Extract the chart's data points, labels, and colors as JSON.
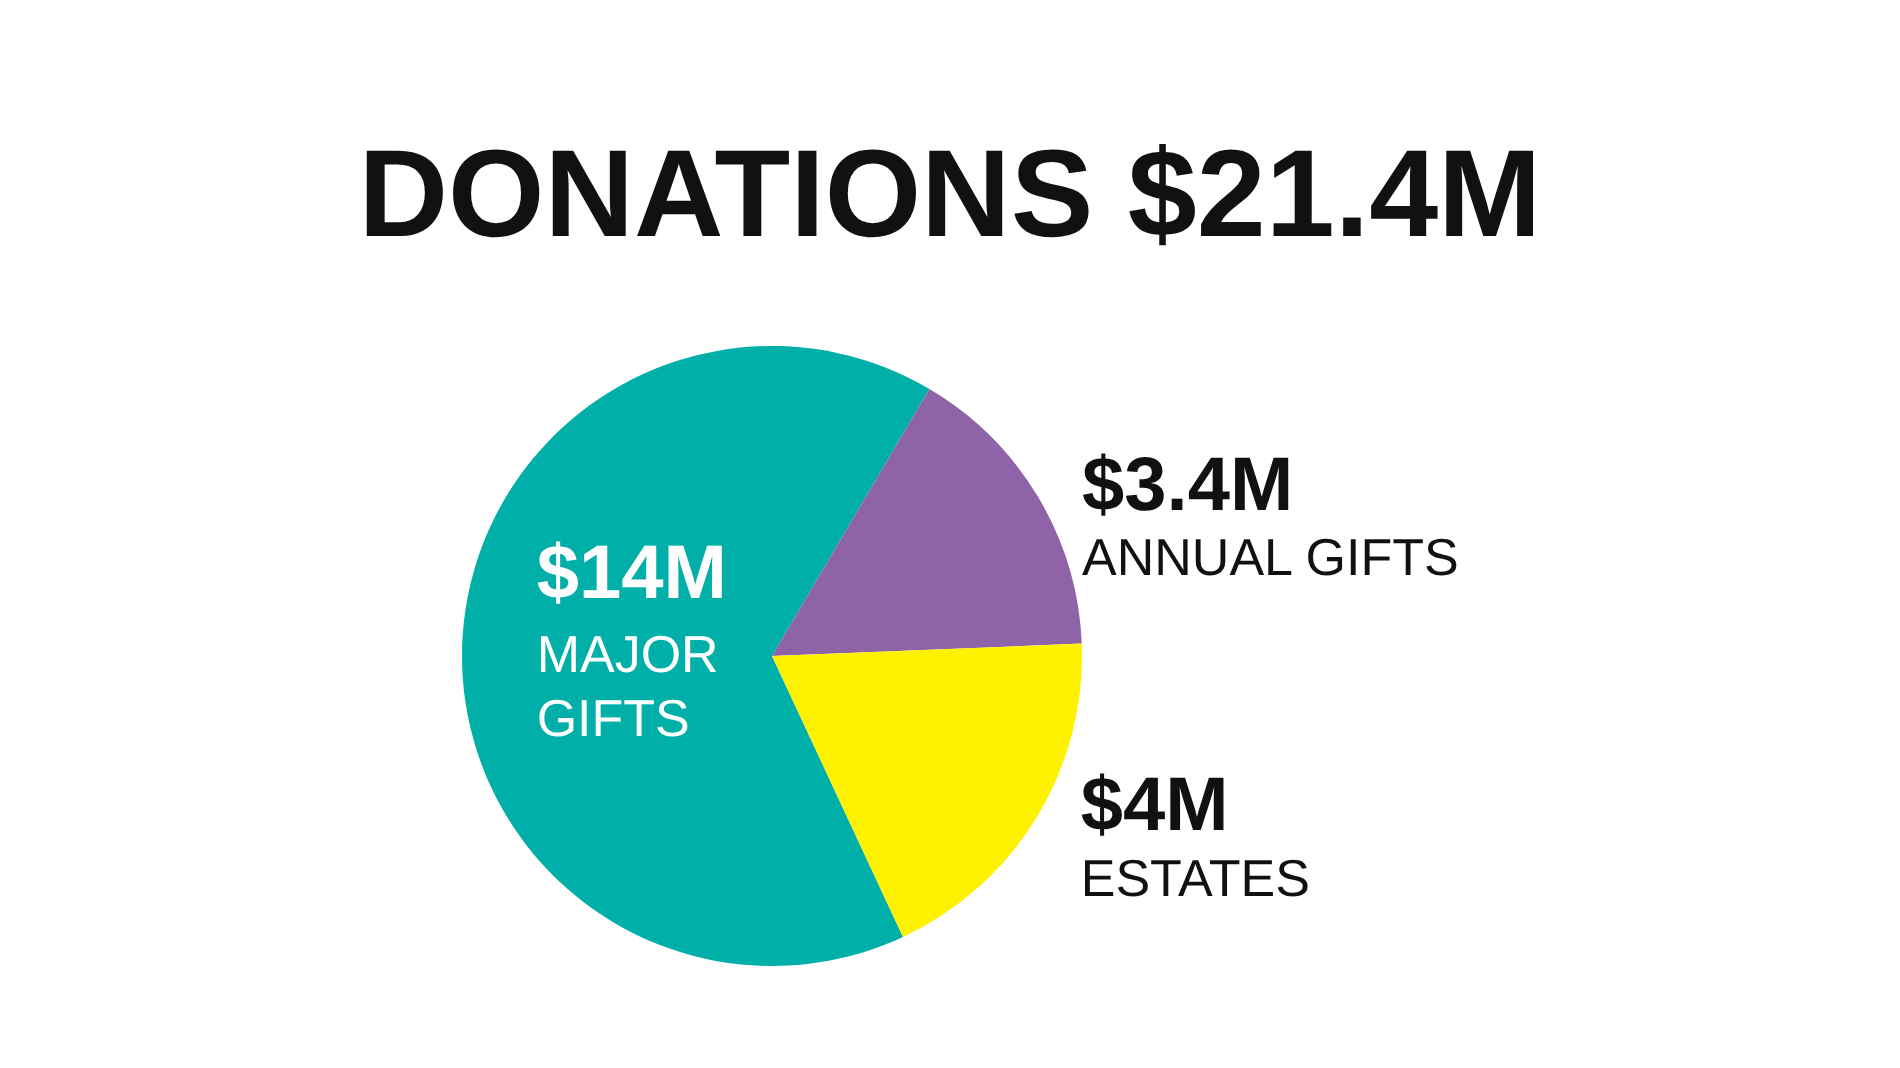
{
  "chart_data": {
    "type": "pie",
    "title": "DONATIONS $21.4M",
    "categories": [
      "MAJOR GIFTS",
      "ANNUAL GIFTS",
      "ESTATES"
    ],
    "values": [
      14,
      3.4,
      4
    ],
    "value_labels": [
      "$14M",
      "$3.4M",
      "$4M"
    ],
    "colors": [
      "#00b0a8",
      "#8e63a8",
      "#fff200"
    ]
  }
}
